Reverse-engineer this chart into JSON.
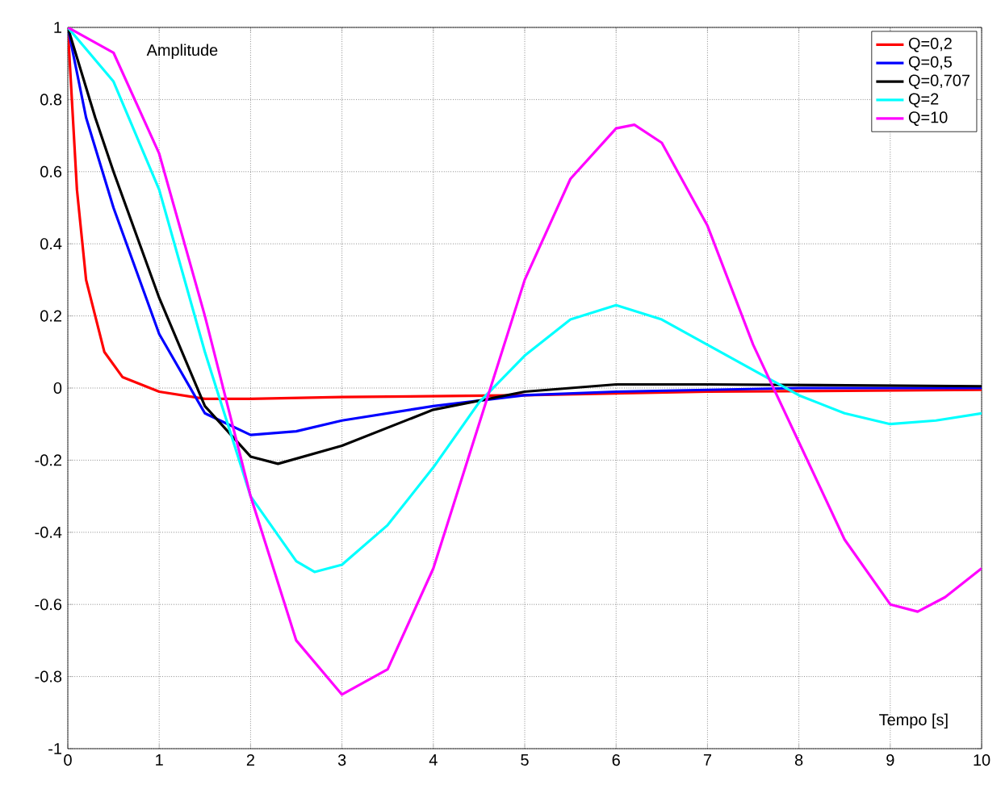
{
  "chart_data": {
    "type": "line",
    "xlabel": "Tempo [s]",
    "ylabel": "Amplitude",
    "xlim": [
      0,
      10
    ],
    "ylim": [
      -1,
      1
    ],
    "xticks": [
      0,
      1,
      2,
      3,
      4,
      5,
      6,
      7,
      8,
      9,
      10
    ],
    "yticks": [
      -1,
      -0.8,
      -0.6,
      -0.4,
      -0.2,
      0,
      0.2,
      0.4,
      0.6,
      0.8,
      1
    ],
    "grid": true,
    "legend": "top right",
    "series": [
      {
        "name": "Q=0,2",
        "color": "#ff0000",
        "x": [
          0,
          0.1,
          0.2,
          0.4,
          0.6,
          1,
          1.5,
          2,
          3,
          5,
          7,
          10
        ],
        "values": [
          1,
          0.55,
          0.3,
          0.1,
          0.03,
          -0.01,
          -0.03,
          -0.03,
          -0.025,
          -0.02,
          -0.01,
          -0.005
        ]
      },
      {
        "name": "Q=0,5",
        "color": "#0000ff",
        "x": [
          0,
          0.2,
          0.5,
          1,
          1.5,
          2,
          2.5,
          3,
          4,
          5,
          6,
          8,
          10
        ],
        "values": [
          1,
          0.75,
          0.5,
          0.15,
          -0.07,
          -0.13,
          -0.12,
          -0.09,
          -0.05,
          -0.02,
          -0.01,
          0,
          0
        ]
      },
      {
        "name": "Q=0,707",
        "color": "#000000",
        "x": [
          0,
          0.3,
          0.5,
          1,
          1.5,
          2,
          2.3,
          3,
          4,
          5,
          6,
          7,
          10
        ],
        "values": [
          1,
          0.75,
          0.6,
          0.25,
          -0.05,
          -0.19,
          -0.21,
          -0.16,
          -0.06,
          -0.01,
          0.01,
          0.01,
          0.005
        ]
      },
      {
        "name": "Q=2",
        "color": "#00ffff",
        "x": [
          0,
          0.5,
          1,
          1.5,
          2,
          2.5,
          2.7,
          3,
          3.5,
          4,
          4.5,
          5,
          5.5,
          6,
          6.5,
          7,
          7.5,
          8,
          8.5,
          9,
          9.5,
          10
        ],
        "values": [
          1,
          0.85,
          0.55,
          0.1,
          -0.3,
          -0.48,
          -0.51,
          -0.49,
          -0.38,
          -0.22,
          -0.04,
          0.09,
          0.19,
          0.23,
          0.19,
          0.12,
          0.05,
          -0.02,
          -0.07,
          -0.1,
          -0.09,
          -0.07
        ]
      },
      {
        "name": "Q=10",
        "color": "#ff00ff",
        "x": [
          0,
          0.5,
          1,
          1.5,
          2,
          2.5,
          3,
          3.5,
          4,
          4.5,
          5,
          5.5,
          6,
          6.2,
          6.5,
          7,
          7.5,
          8,
          8.5,
          9,
          9.3,
          9.6,
          10
        ],
        "values": [
          1,
          0.93,
          0.65,
          0.2,
          -0.3,
          -0.7,
          -0.85,
          -0.78,
          -0.5,
          -0.1,
          0.3,
          0.58,
          0.72,
          0.73,
          0.68,
          0.45,
          0.12,
          -0.15,
          -0.42,
          -0.6,
          -0.62,
          -0.58,
          -0.5
        ]
      }
    ]
  }
}
